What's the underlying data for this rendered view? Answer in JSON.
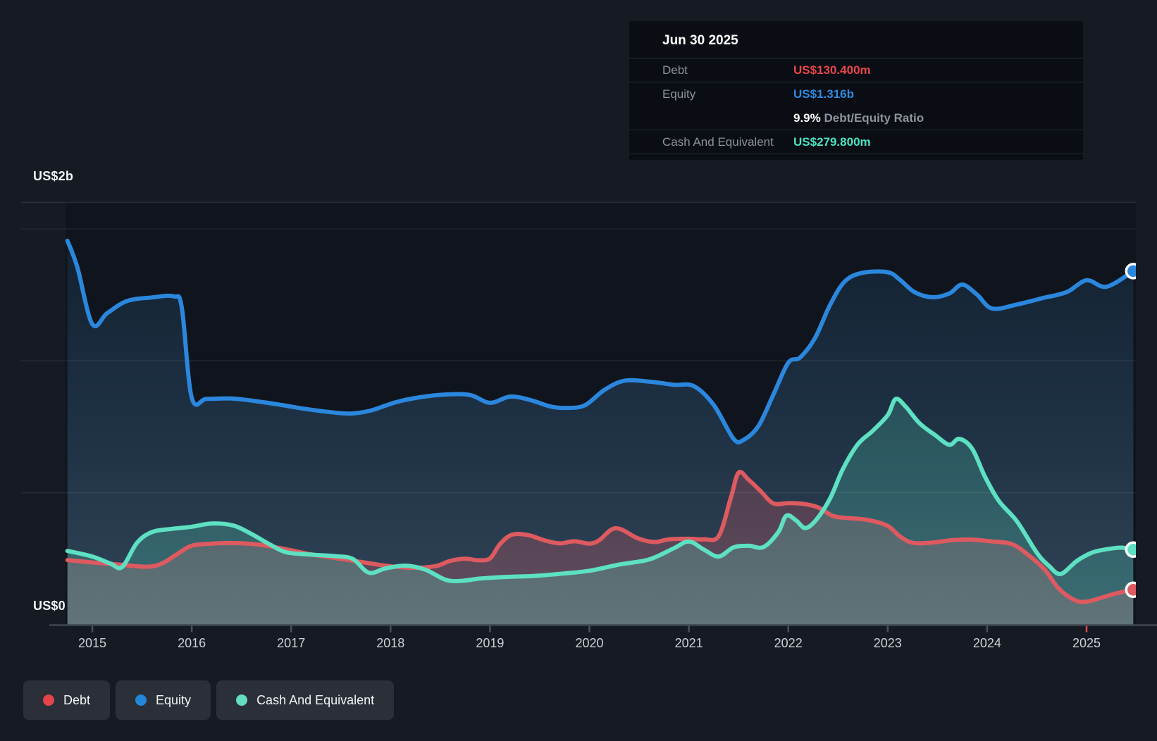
{
  "tooltip": {
    "date": "Jun 30 2025",
    "rows": [
      {
        "label": "Debt",
        "value": "US$130.400m",
        "color": "#e8464b"
      },
      {
        "label": "Equity",
        "value": "US$1.316b",
        "color": "#2f8be0"
      },
      {
        "label": "",
        "value": "9.9%",
        "suffix": " Debt/Equity Ratio",
        "color": "#ffffff"
      },
      {
        "label": "Cash And Equivalent",
        "value": "US$279.800m",
        "color": "#4be3c3"
      }
    ]
  },
  "y_axis": {
    "top_label": "US$2b",
    "bottom_label": "US$0"
  },
  "x_axis": {
    "years": [
      "2015",
      "2016",
      "2017",
      "2018",
      "2019",
      "2020",
      "2021",
      "2022",
      "2023",
      "2024",
      "2025"
    ],
    "highlight_year": "2025",
    "highlight_tick_color": "#e0474c"
  },
  "legend": [
    {
      "label": "Debt",
      "color": "#e4444a"
    },
    {
      "label": "Equity",
      "color": "#2386d8"
    },
    {
      "label": "Cash And Equivalent",
      "color": "#63dfc0"
    }
  ],
  "chart_data": {
    "type": "area",
    "title": "Debt to Equity History (values in US$ millions)",
    "x_unit": "year",
    "xlim": [
      2014.75,
      2025.5
    ],
    "ylim_millions": [
      0,
      2000
    ],
    "gridline_values_millions": [
      500,
      1000,
      1500
    ],
    "legend_position": "bottom-left",
    "last_point_date": "Jun 30 2025",
    "series": [
      {
        "name": "Equity",
        "color": "#2b87dd",
        "points": [
          [
            2014.75,
            1429
          ],
          [
            2014.85,
            1330
          ],
          [
            2015.0,
            1119
          ],
          [
            2015.15,
            1160
          ],
          [
            2015.35,
            1205
          ],
          [
            2015.6,
            1218
          ],
          [
            2015.82,
            1222
          ],
          [
            2015.9,
            1180
          ],
          [
            2016.0,
            845
          ],
          [
            2016.15,
            841
          ],
          [
            2016.4,
            842
          ],
          [
            2016.65,
            832
          ],
          [
            2016.9,
            818
          ],
          [
            2017.15,
            803
          ],
          [
            2017.4,
            791
          ],
          [
            2017.6,
            786
          ],
          [
            2017.8,
            797
          ],
          [
            2018.05,
            828
          ],
          [
            2018.3,
            847
          ],
          [
            2018.55,
            857
          ],
          [
            2018.8,
            855
          ],
          [
            2019.0,
            826
          ],
          [
            2019.2,
            849
          ],
          [
            2019.4,
            837
          ],
          [
            2019.6,
            813
          ],
          [
            2019.75,
            807
          ],
          [
            2019.95,
            816
          ],
          [
            2020.15,
            874
          ],
          [
            2020.35,
            908
          ],
          [
            2020.6,
            905
          ],
          [
            2020.85,
            893
          ],
          [
            2021.05,
            888
          ],
          [
            2021.25,
            818
          ],
          [
            2021.45,
            692
          ],
          [
            2021.55,
            688
          ],
          [
            2021.7,
            740
          ],
          [
            2021.85,
            856
          ],
          [
            2022.0,
            975
          ],
          [
            2022.12,
            995
          ],
          [
            2022.27,
            1068
          ],
          [
            2022.42,
            1190
          ],
          [
            2022.57,
            1278
          ],
          [
            2022.75,
            1310
          ],
          [
            2023.0,
            1312
          ],
          [
            2023.12,
            1285
          ],
          [
            2023.27,
            1238
          ],
          [
            2023.45,
            1219
          ],
          [
            2023.62,
            1233
          ],
          [
            2023.75,
            1266
          ],
          [
            2023.9,
            1228
          ],
          [
            2024.05,
            1177
          ],
          [
            2024.3,
            1192
          ],
          [
            2024.55,
            1215
          ],
          [
            2024.8,
            1238
          ],
          [
            2025.0,
            1282
          ],
          [
            2025.2,
            1258
          ],
          [
            2025.47,
            1316
          ]
        ]
      },
      {
        "name": "Debt",
        "color": "#dd5a60",
        "points": [
          [
            2014.75,
            241
          ],
          [
            2015.0,
            232
          ],
          [
            2015.3,
            223
          ],
          [
            2015.55,
            216
          ],
          [
            2015.7,
            228
          ],
          [
            2015.85,
            262
          ],
          [
            2016.0,
            294
          ],
          [
            2016.2,
            302
          ],
          [
            2016.45,
            304
          ],
          [
            2016.7,
            297
          ],
          [
            2016.95,
            281
          ],
          [
            2017.2,
            262
          ],
          [
            2017.45,
            248
          ],
          [
            2017.7,
            234
          ],
          [
            2017.95,
            220
          ],
          [
            2018.2,
            212
          ],
          [
            2018.45,
            218
          ],
          [
            2018.6,
            238
          ],
          [
            2018.75,
            246
          ],
          [
            2018.88,
            240
          ],
          [
            2019.0,
            247
          ],
          [
            2019.1,
            300
          ],
          [
            2019.22,
            335
          ],
          [
            2019.38,
            334
          ],
          [
            2019.55,
            314
          ],
          [
            2019.7,
            303
          ],
          [
            2019.85,
            311
          ],
          [
            2020.0,
            302
          ],
          [
            2020.1,
            315
          ],
          [
            2020.22,
            354
          ],
          [
            2020.32,
            355
          ],
          [
            2020.48,
            323
          ],
          [
            2020.65,
            308
          ],
          [
            2020.8,
            318
          ],
          [
            2021.0,
            320
          ],
          [
            2021.15,
            318
          ],
          [
            2021.3,
            330
          ],
          [
            2021.42,
            470
          ],
          [
            2021.5,
            566
          ],
          [
            2021.6,
            540
          ],
          [
            2021.72,
            498
          ],
          [
            2021.85,
            452
          ],
          [
            2022.0,
            453
          ],
          [
            2022.15,
            450
          ],
          [
            2022.3,
            437
          ],
          [
            2022.45,
            405
          ],
          [
            2022.6,
            397
          ],
          [
            2022.8,
            390
          ],
          [
            2023.0,
            368
          ],
          [
            2023.12,
            330
          ],
          [
            2023.25,
            305
          ],
          [
            2023.45,
            306
          ],
          [
            2023.65,
            315
          ],
          [
            2023.85,
            317
          ],
          [
            2024.05,
            310
          ],
          [
            2024.25,
            300
          ],
          [
            2024.42,
            258
          ],
          [
            2024.58,
            205
          ],
          [
            2024.72,
            135
          ],
          [
            2024.88,
            92
          ],
          [
            2025.0,
            86
          ],
          [
            2025.15,
            101
          ],
          [
            2025.3,
            117
          ],
          [
            2025.47,
            130.4
          ]
        ]
      },
      {
        "name": "Cash And Equivalent",
        "color": "#5ee0c2",
        "points": [
          [
            2014.75,
            275
          ],
          [
            2015.0,
            254
          ],
          [
            2015.18,
            228
          ],
          [
            2015.3,
            215
          ],
          [
            2015.45,
            305
          ],
          [
            2015.6,
            345
          ],
          [
            2015.8,
            357
          ],
          [
            2016.0,
            365
          ],
          [
            2016.2,
            377
          ],
          [
            2016.42,
            369
          ],
          [
            2016.6,
            338
          ],
          [
            2016.78,
            300
          ],
          [
            2016.95,
            270
          ],
          [
            2017.2,
            261
          ],
          [
            2017.45,
            255
          ],
          [
            2017.62,
            245
          ],
          [
            2017.78,
            194
          ],
          [
            2017.95,
            210
          ],
          [
            2018.15,
            220
          ],
          [
            2018.35,
            205
          ],
          [
            2018.55,
            168
          ],
          [
            2018.7,
            163
          ],
          [
            2018.9,
            172
          ],
          [
            2019.15,
            178
          ],
          [
            2019.45,
            182
          ],
          [
            2019.75,
            191
          ],
          [
            2020.0,
            201
          ],
          [
            2020.3,
            224
          ],
          [
            2020.6,
            243
          ],
          [
            2020.85,
            285
          ],
          [
            2021.0,
            310
          ],
          [
            2021.15,
            280
          ],
          [
            2021.3,
            254
          ],
          [
            2021.45,
            288
          ],
          [
            2021.6,
            294
          ],
          [
            2021.75,
            289
          ],
          [
            2021.9,
            345
          ],
          [
            2021.98,
            406
          ],
          [
            2022.08,
            388
          ],
          [
            2022.17,
            360
          ],
          [
            2022.28,
            390
          ],
          [
            2022.42,
            470
          ],
          [
            2022.55,
            580
          ],
          [
            2022.7,
            672
          ],
          [
            2022.85,
            722
          ],
          [
            2023.0,
            780
          ],
          [
            2023.08,
            840
          ],
          [
            2023.18,
            812
          ],
          [
            2023.32,
            750
          ],
          [
            2023.48,
            705
          ],
          [
            2023.62,
            670
          ],
          [
            2023.72,
            692
          ],
          [
            2023.85,
            655
          ],
          [
            2023.98,
            550
          ],
          [
            2024.12,
            460
          ],
          [
            2024.3,
            385
          ],
          [
            2024.5,
            268
          ],
          [
            2024.62,
            220
          ],
          [
            2024.74,
            189
          ],
          [
            2024.9,
            237
          ],
          [
            2025.05,
            268
          ],
          [
            2025.2,
            281
          ],
          [
            2025.35,
            287
          ],
          [
            2025.47,
            279.8
          ]
        ]
      }
    ]
  }
}
